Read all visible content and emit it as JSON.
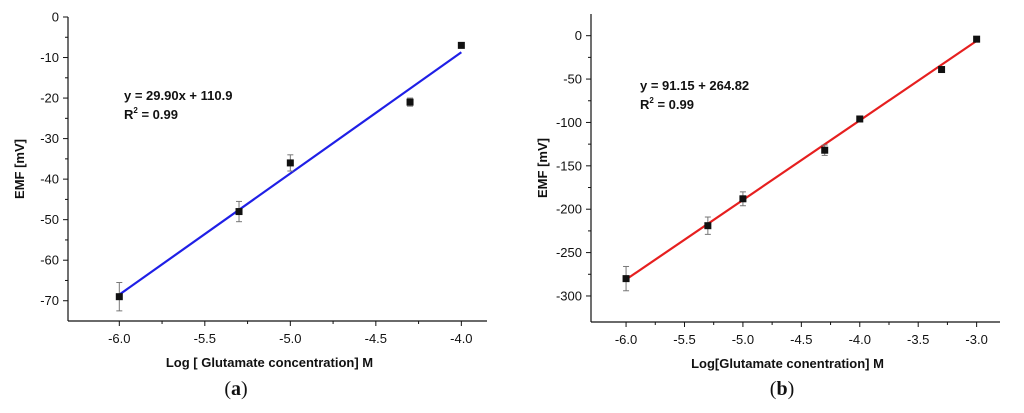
{
  "chart_data": [
    {
      "type": "scatter",
      "panel_caption": {
        "open": "(",
        "letter": "a",
        "close": ")"
      },
      "xlabel": "Log [ Glutamate concentration] M",
      "ylabel": "EMF [mV]",
      "xlim": [
        -6.3,
        -3.85
      ],
      "ylim": [
        -75,
        0
      ],
      "xticks": [
        -6.0,
        -5.5,
        -5.0,
        -4.5,
        -4.0
      ],
      "xtick_labels": [
        "-6.0",
        "-5.5",
        "-5.0",
        "-4.5",
        "-4.0"
      ],
      "yticks": [
        0,
        -10,
        -20,
        -30,
        -40,
        -50,
        -60,
        -70
      ],
      "ytick_labels": [
        "0",
        "-10",
        "-20",
        "-30",
        "-40",
        "-50",
        "-60",
        "-70"
      ],
      "points": {
        "x": [
          -6.0,
          -5.3,
          -5.0,
          -4.3,
          -4.0
        ],
        "y": [
          -69,
          -48,
          -36,
          -21,
          -7
        ],
        "err": [
          3.5,
          2.5,
          2,
          1,
          0.5
        ]
      },
      "fit": {
        "color": "#1f1fe6",
        "x": [
          -6.0,
          -4.0
        ],
        "y": [
          -68.5,
          -8.7
        ]
      },
      "annotation": {
        "equation": "y = 29.90x + 110.9",
        "r2_prefix": "R",
        "r2_sup": "2",
        "r2_suffix": " = 0.99"
      }
    },
    {
      "type": "scatter",
      "panel_caption": {
        "open": "(",
        "letter": "b",
        "close": ")"
      },
      "xlabel": "Log[Glutamate conentration] M",
      "ylabel": "EMF [mV]",
      "xlim": [
        -6.3,
        -2.8
      ],
      "ylim": [
        -330,
        25
      ],
      "xticks": [
        -6.0,
        -5.5,
        -5.0,
        -4.5,
        -4.0,
        -3.5,
        -3.0
      ],
      "xtick_labels": [
        "-6.0",
        "-5.5",
        "-5.0",
        "-4.5",
        "-4.0",
        "-3.5",
        "-3.0"
      ],
      "yticks": [
        0,
        -50,
        -100,
        -150,
        -200,
        -250,
        -300
      ],
      "ytick_labels": [
        "0",
        "-50",
        "-100",
        "-150",
        "-200",
        "-250",
        "-300"
      ],
      "points": {
        "x": [
          -6.0,
          -5.3,
          -5.0,
          -4.3,
          -4.0,
          -3.3,
          -3.0
        ],
        "y": [
          -280,
          -219,
          -188,
          -132,
          -96,
          -39,
          -4
        ],
        "err": [
          14,
          10,
          8,
          6,
          3,
          2,
          2
        ]
      },
      "fit": {
        "color": "#e61f1f",
        "x": [
          -6.0,
          -3.0
        ],
        "y": [
          -281,
          -6
        ]
      },
      "annotation": {
        "equation": "y = 91.15 + 264.82",
        "r2_prefix": "R",
        "r2_sup": "2",
        "r2_suffix": " = 0.99"
      }
    }
  ]
}
